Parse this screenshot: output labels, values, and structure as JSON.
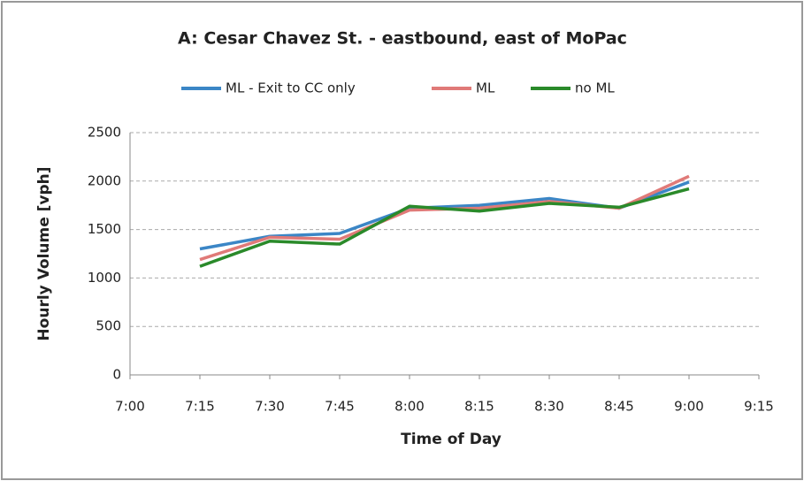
{
  "chart_data": {
    "type": "line",
    "title": "A: Cesar Chavez St. - eastbound, east of MoPac",
    "x_label": "Time of Day",
    "y_label": "Hourly Volume [vph]",
    "categories": [
      "7:00",
      "7:15",
      "7:30",
      "7:45",
      "8:00",
      "8:15",
      "8:30",
      "8:45",
      "9:00",
      "9:15"
    ],
    "series": [
      {
        "name": "ML - Exit to CC only",
        "color": "#3b86c6",
        "values": [
          null,
          1300,
          1430,
          1460,
          1720,
          1750,
          1820,
          1720,
          1990,
          null
        ]
      },
      {
        "name": "ML",
        "color": "#e07a78",
        "values": [
          null,
          1190,
          1420,
          1400,
          1700,
          1720,
          1790,
          1720,
          2050,
          null
        ]
      },
      {
        "name": "no ML",
        "color": "#2a8a2a",
        "values": [
          null,
          1120,
          1380,
          1350,
          1740,
          1690,
          1770,
          1730,
          1920,
          null
        ]
      }
    ],
    "ylim": [
      0,
      2500
    ],
    "yticks": [
      0,
      500,
      1000,
      1500,
      2000,
      2500
    ],
    "grid": true,
    "legend": "top"
  }
}
